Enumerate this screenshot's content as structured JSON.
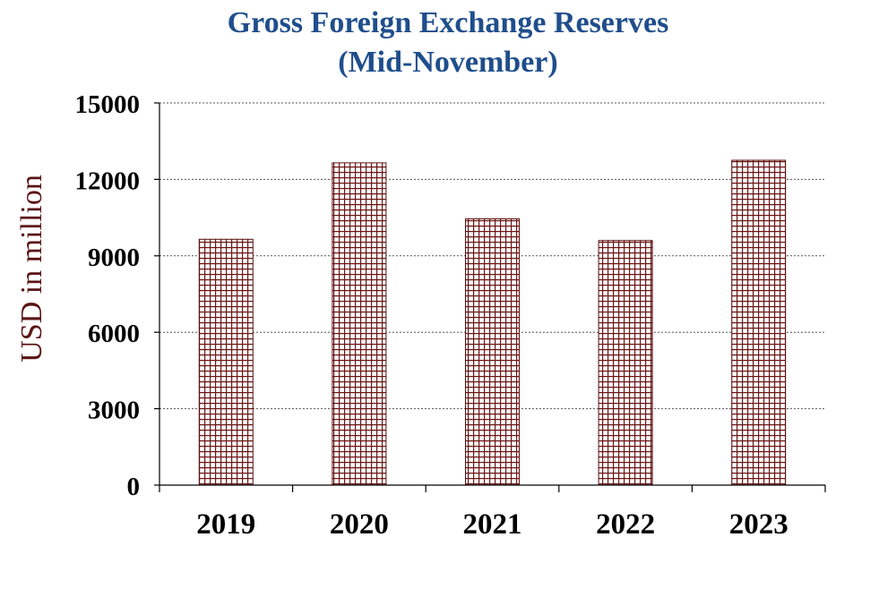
{
  "chart_data": {
    "type": "bar",
    "title": "Gross Foreign Exchange Reserves",
    "subtitle": "(Mid-November)",
    "xlabel": "",
    "ylabel": "USD in million",
    "categories": [
      "2019",
      "2020",
      "2021",
      "2022",
      "2023"
    ],
    "values": [
      9650,
      12650,
      10450,
      9600,
      12750
    ],
    "ylim": [
      0,
      15000
    ],
    "yticks": [
      0,
      3000,
      6000,
      9000,
      12000,
      15000
    ],
    "grid": true,
    "legend": "none",
    "colors": {
      "bar_line": "#5a0f0f",
      "bar_fill": "#ffffff",
      "grid": "#555555",
      "title": "#1f4e8c",
      "ylabel": "#5a1414"
    }
  }
}
